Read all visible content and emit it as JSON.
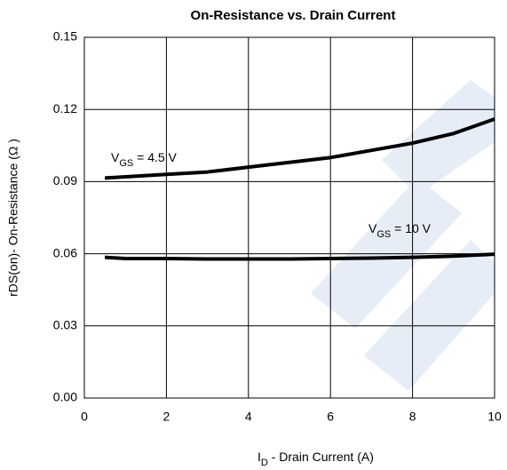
{
  "chart_data": {
    "type": "line",
    "title": "On-Resistance vs. Drain Current",
    "xlabel": [
      "I",
      "D",
      "  -  Drain Current (A)"
    ],
    "ylabel": "rDS(on)-  On-Resistance (Ω )",
    "annotations": [
      [
        "V",
        "GS",
        " = 4.5 V"
      ],
      [
        "V",
        "GS",
        " = 10 V"
      ]
    ],
    "x": [
      0.5,
      1,
      2,
      3,
      4,
      5,
      6,
      7,
      8,
      9,
      10
    ],
    "series": [
      {
        "color": "#000000",
        "values": [
          0.0915,
          0.092,
          0.093,
          0.094,
          0.096,
          0.098,
          0.1,
          0.103,
          0.106,
          0.11,
          0.116
        ]
      },
      {
        "color": "#000000",
        "values": [
          0.0585,
          0.058,
          0.058,
          0.0578,
          0.0578,
          0.0578,
          0.058,
          0.0582,
          0.0585,
          0.059,
          0.0598
        ]
      }
    ],
    "xlim": [
      0,
      10
    ],
    "xticks": [
      0,
      2,
      4,
      6,
      8,
      10
    ],
    "ylim": [
      0,
      0.15
    ],
    "yticks": [
      {
        "value": 0,
        "label": "0.00"
      },
      0.03,
      0.06,
      0.09,
      0.12,
      0.15
    ],
    "grid": true
  }
}
